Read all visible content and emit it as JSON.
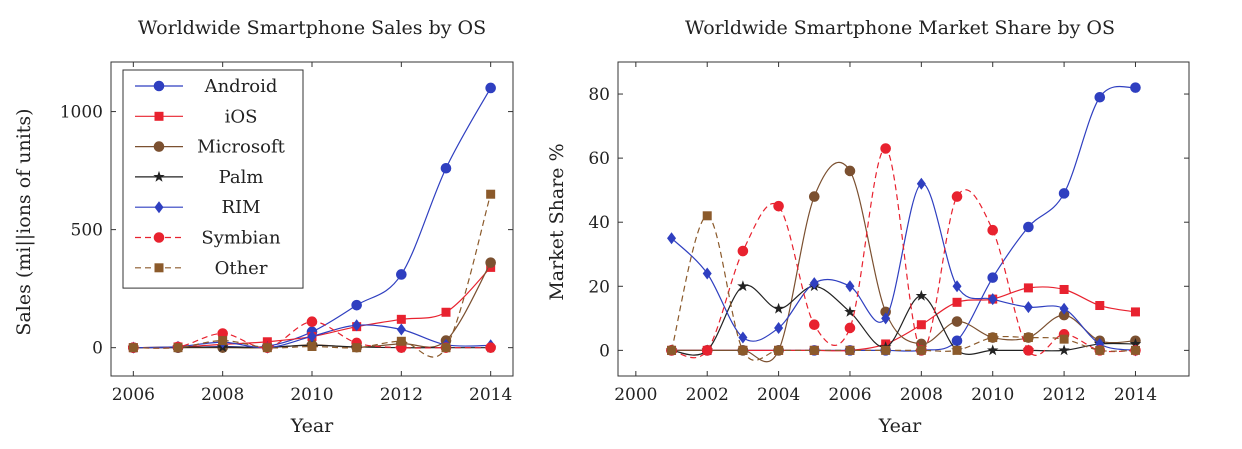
{
  "chart_data": [
    {
      "type": "line",
      "title": "Worldwide Smartphone Sales by OS",
      "xlabel": "Year",
      "ylabel": "Sales (mi||ions of units)",
      "xlim": [
        2005.5,
        2014.5
      ],
      "ylim": [
        -120,
        1210
      ],
      "xticks": [
        2006,
        2008,
        2010,
        2012,
        2014
      ],
      "yticks": [
        0,
        500,
        1000
      ],
      "grid": false,
      "legend": "top-left",
      "x": [
        2006,
        2007,
        2008,
        2009,
        2010,
        2011,
        2012,
        2013,
        2014
      ],
      "series": [
        {
          "name": "Android",
          "color": "#2f3fc0",
          "marker": "circle",
          "dashed": false,
          "values": [
            0,
            0,
            5,
            6,
            67,
            180,
            310,
            760,
            1100
          ]
        },
        {
          "name": "iOS",
          "color": "#e8222f",
          "marker": "square",
          "dashed": false,
          "values": [
            0,
            3,
            14,
            25,
            47,
            89,
            120,
            150,
            340
          ]
        },
        {
          "name": "Microsoft",
          "color": "#7b5030",
          "marker": "circle",
          "dashed": false,
          "values": [
            0,
            0,
            0,
            0,
            12,
            2,
            17,
            30,
            360
          ]
        },
        {
          "name": "Palm",
          "color": "#222222",
          "marker": "star",
          "dashed": false,
          "values": [
            0,
            2,
            2,
            2,
            10,
            3,
            0,
            0,
            0
          ]
        },
        {
          "name": "RIM",
          "color": "#2f3fc0",
          "marker": "diamond",
          "dashed": false,
          "values": [
            0,
            4,
            23,
            0,
            48,
            95,
            77,
            12,
            10
          ]
        },
        {
          "name": "Symbian",
          "color": "#e8222f",
          "marker": "circle",
          "dashed": true,
          "values": [
            0,
            3,
            60,
            0,
            110,
            20,
            0,
            0,
            0
          ]
        },
        {
          "name": "Other",
          "color": "#8b5a2b",
          "marker": "square",
          "dashed": true,
          "values": [
            0,
            0,
            30,
            0,
            5,
            0,
            27,
            0,
            650
          ]
        }
      ]
    },
    {
      "type": "line",
      "title": "Worldwide Smartphone Market Share by OS",
      "xlabel": "Year",
      "ylabel": "Market Share %",
      "xlim": [
        1999.5,
        2015.5
      ],
      "ylim": [
        -8,
        90
      ],
      "xticks": [
        2000,
        2002,
        2004,
        2006,
        2008,
        2010,
        2012,
        2014
      ],
      "yticks": [
        0,
        20,
        40,
        60,
        80
      ],
      "grid": false,
      "legend": "none",
      "x": [
        2001,
        2002,
        2003,
        2004,
        2005,
        2006,
        2007,
        2008,
        2009,
        2010,
        2011,
        2012,
        2013,
        2014
      ],
      "series": [
        {
          "name": "Android",
          "color": "#2f3fc0",
          "marker": "circle",
          "dashed": false,
          "values": [
            0,
            0,
            0,
            0,
            0,
            0,
            0,
            0,
            3,
            22.7,
            38.5,
            49,
            79,
            82
          ]
        },
        {
          "name": "iOS",
          "color": "#e8222f",
          "marker": "square",
          "dashed": false,
          "values": [
            0,
            0,
            0,
            0,
            0,
            0,
            2,
            8,
            15,
            16,
            19.5,
            19,
            14,
            12
          ]
        },
        {
          "name": "Microsoft",
          "color": "#7b5030",
          "marker": "circle",
          "dashed": false,
          "values": [
            0,
            0,
            0,
            0,
            48,
            56,
            12,
            2,
            9,
            4,
            4,
            11,
            3,
            3
          ]
        },
        {
          "name": "Palm",
          "color": "#222222",
          "marker": "star",
          "dashed": false,
          "values": [
            0,
            0,
            20,
            13,
            20,
            12,
            1,
            17,
            0,
            0,
            0,
            0,
            2,
            2
          ]
        },
        {
          "name": "RIM",
          "color": "#2f3fc0",
          "marker": "diamond",
          "dashed": false,
          "values": [
            35,
            24,
            4,
            7,
            21,
            20,
            10,
            52,
            20,
            16,
            13.5,
            13,
            2,
            0
          ]
        },
        {
          "name": "Symbian",
          "color": "#e8222f",
          "marker": "circle",
          "dashed": true,
          "values": [
            0,
            0,
            31,
            45,
            8,
            7,
            63,
            0,
            48,
            37.5,
            0,
            5,
            0,
            0
          ]
        },
        {
          "name": "Other",
          "color": "#8b5a2b",
          "marker": "square",
          "dashed": true,
          "values": [
            0,
            42,
            0,
            0,
            0,
            0,
            0,
            0,
            0,
            4,
            4,
            3.5,
            0,
            0
          ]
        }
      ]
    }
  ]
}
